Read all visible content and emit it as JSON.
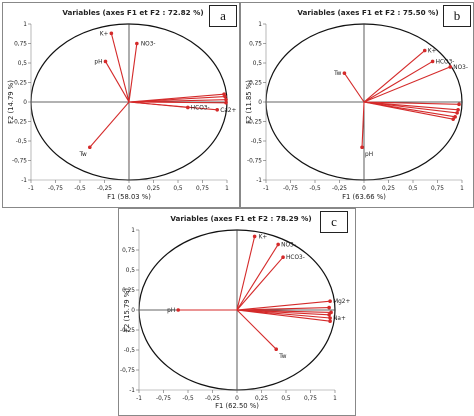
{
  "colors": {
    "vector": "#d42a2a",
    "circle": "#111111",
    "axis": "#333333"
  },
  "chart_data": [
    {
      "type": "scatter",
      "panel": "a",
      "title": "Variables (axes F1 et F2 : 72.82 %)",
      "xlabel": "F1 (58.03 %)",
      "ylabel": "F2 (14.79 %)",
      "xlim": [
        -1,
        1
      ],
      "ylim": [
        -1,
        1
      ],
      "xticks": [
        "-1",
        "-0,75",
        "-0,5",
        "-0,25",
        "0",
        "0,25",
        "0,5",
        "0,75",
        "1"
      ],
      "yticks": [
        "-1",
        "-0,75",
        "-0,5",
        "-0,25",
        "0",
        "0,25",
        "0,5",
        "0,75",
        "1"
      ],
      "points": [
        {
          "label": "K+",
          "x": -0.18,
          "y": 0.88
        },
        {
          "label": "NO3-",
          "x": 0.08,
          "y": 0.75
        },
        {
          "label": "pH",
          "x": -0.24,
          "y": 0.52
        },
        {
          "label": "",
          "x": 0.97,
          "y": 0.1
        },
        {
          "label": "",
          "x": 0.98,
          "y": 0.07
        },
        {
          "label": "",
          "x": 0.99,
          "y": 0.03
        },
        {
          "label": "",
          "x": 0.99,
          "y": -0.01
        },
        {
          "label": "Ca2+",
          "x": 0.9,
          "y": -0.1
        },
        {
          "label": "HCO3-",
          "x": 0.6,
          "y": -0.07
        },
        {
          "label": "Tw",
          "x": -0.4,
          "y": -0.58
        }
      ]
    },
    {
      "type": "scatter",
      "panel": "b",
      "title": "Variables (axes F1 et F2 : 75.50 %)",
      "xlabel": "F1 (63.66 %)",
      "ylabel": "F2 (11.85 %)",
      "xlim": [
        -1,
        1
      ],
      "ylim": [
        -1,
        1
      ],
      "xticks": [
        "-1",
        "-0,75",
        "-0,5",
        "-0,25",
        "0",
        "0,25",
        "0,5",
        "0,75",
        "1"
      ],
      "yticks": [
        "-1",
        "-0,75",
        "-0,5",
        "-0,25",
        "0",
        "0,25",
        "0,5",
        "0,75",
        "1"
      ],
      "points": [
        {
          "label": "K+",
          "x": 0.62,
          "y": 0.66
        },
        {
          "label": "HCO3-",
          "x": 0.7,
          "y": 0.52
        },
        {
          "label": "NO3-",
          "x": 0.88,
          "y": 0.45
        },
        {
          "label": "Tw",
          "x": -0.2,
          "y": 0.37
        },
        {
          "label": "",
          "x": 0.97,
          "y": -0.03
        },
        {
          "label": "",
          "x": 0.96,
          "y": -0.1
        },
        {
          "label": "",
          "x": 0.95,
          "y": -0.14
        },
        {
          "label": "",
          "x": 0.93,
          "y": -0.19
        },
        {
          "label": "",
          "x": 0.91,
          "y": -0.22
        },
        {
          "label": "pH",
          "x": -0.02,
          "y": -0.58
        }
      ]
    },
    {
      "type": "scatter",
      "panel": "c",
      "title": "Variables (axes F1 et F2 : 78.29 %)",
      "xlabel": "F1 (62.50 %)",
      "ylabel": "F2 (15.79 %)",
      "xlim": [
        -1,
        1
      ],
      "ylim": [
        -1,
        1
      ],
      "xticks": [
        "-1",
        "-0,75",
        "-0,5",
        "-0,25",
        "0",
        "0,25",
        "0,5",
        "0,75",
        "1"
      ],
      "yticks": [
        "-1",
        "-0,75",
        "-0,5",
        "-0,25",
        "0",
        "0,25",
        "0,5",
        "0,75",
        "1"
      ],
      "points": [
        {
          "label": "K+",
          "x": 0.18,
          "y": 0.92
        },
        {
          "label": "NO3-",
          "x": 0.42,
          "y": 0.82
        },
        {
          "label": "HCO3-",
          "x": 0.47,
          "y": 0.66
        },
        {
          "label": "Mg2+",
          "x": 0.95,
          "y": 0.11
        },
        {
          "label": "",
          "x": 0.94,
          "y": 0.03
        },
        {
          "label": "",
          "x": 0.96,
          "y": -0.03
        },
        {
          "label": "",
          "x": 0.94,
          "y": -0.06
        },
        {
          "label": "Na+",
          "x": 0.95,
          "y": -0.1
        },
        {
          "label": "",
          "x": 0.95,
          "y": -0.14
        },
        {
          "label": "pH",
          "x": -0.6,
          "y": 0.0
        },
        {
          "label": "Tw",
          "x": 0.4,
          "y": -0.49
        }
      ]
    }
  ]
}
